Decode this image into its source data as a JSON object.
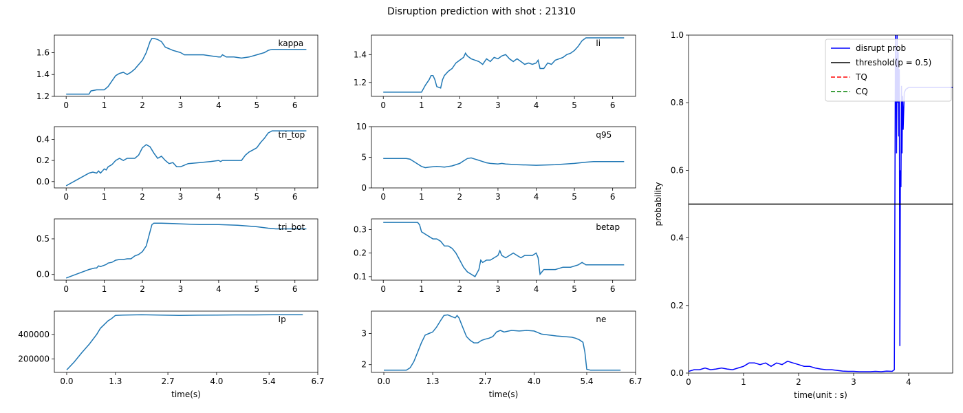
{
  "figure": {
    "title": "Disruption prediction with shot : 21310"
  },
  "chart_data": [
    {
      "type": "line",
      "panel": "kappa",
      "label": "kappa",
      "color": "#1f77b4",
      "xlim": [
        -0.31,
        6.6
      ],
      "ylim": [
        1.2,
        1.76
      ],
      "xticks": [
        0,
        1,
        2,
        3,
        4,
        5,
        6
      ],
      "xtick_labels": [
        "0",
        "1",
        "2",
        "3",
        "4",
        "5",
        "6"
      ],
      "yticks": [
        1.2,
        1.4,
        1.6
      ],
      "ytick_labels": [
        "1.2",
        "1.4",
        "1.6"
      ],
      "xlabel": "",
      "x": [
        0,
        0.6,
        0.65,
        0.8,
        1.0,
        1.1,
        1.2,
        1.3,
        1.4,
        1.5,
        1.6,
        1.7,
        1.8,
        1.9,
        2.0,
        2.1,
        2.2,
        2.25,
        2.3,
        2.4,
        2.5,
        2.6,
        2.8,
        3.0,
        3.1,
        3.3,
        3.6,
        3.8,
        4.0,
        4.05,
        4.1,
        4.2,
        4.4,
        4.6,
        4.8,
        5.0,
        5.1,
        5.2,
        5.3,
        5.4,
        5.5,
        6.0,
        6.3
      ],
      "y": [
        1.22,
        1.22,
        1.25,
        1.26,
        1.26,
        1.29,
        1.34,
        1.39,
        1.41,
        1.42,
        1.4,
        1.42,
        1.45,
        1.49,
        1.53,
        1.6,
        1.7,
        1.73,
        1.73,
        1.72,
        1.7,
        1.65,
        1.62,
        1.6,
        1.58,
        1.58,
        1.58,
        1.57,
        1.56,
        1.56,
        1.58,
        1.56,
        1.56,
        1.55,
        1.56,
        1.58,
        1.59,
        1.6,
        1.62,
        1.63,
        1.63,
        1.63,
        1.63
      ]
    },
    {
      "type": "line",
      "panel": "tri_top",
      "label": "tri_top",
      "color": "#1f77b4",
      "xlim": [
        -0.31,
        6.6
      ],
      "ylim": [
        -0.06,
        0.52
      ],
      "xticks": [
        0,
        1,
        2,
        3,
        4,
        5,
        6
      ],
      "xtick_labels": [
        "0",
        "1",
        "2",
        "3",
        "4",
        "5",
        "6"
      ],
      "yticks": [
        0.0,
        0.2,
        0.4
      ],
      "ytick_labels": [
        "0.0",
        "0.2",
        "0.4"
      ],
      "xlabel": "",
      "x": [
        0,
        0.3,
        0.6,
        0.7,
        0.8,
        0.85,
        0.9,
        1.0,
        1.05,
        1.1,
        1.2,
        1.3,
        1.4,
        1.5,
        1.6,
        1.8,
        1.9,
        2.0,
        2.1,
        2.2,
        2.3,
        2.4,
        2.5,
        2.6,
        2.7,
        2.8,
        2.9,
        3.0,
        3.2,
        3.5,
        3.8,
        4.0,
        4.05,
        4.1,
        4.3,
        4.5,
        4.6,
        4.7,
        4.8,
        4.9,
        5.0,
        5.1,
        5.2,
        5.3,
        5.4,
        6.0,
        6.3
      ],
      "y": [
        -0.04,
        0.02,
        0.08,
        0.09,
        0.08,
        0.1,
        0.08,
        0.12,
        0.11,
        0.14,
        0.16,
        0.2,
        0.22,
        0.2,
        0.22,
        0.22,
        0.25,
        0.32,
        0.35,
        0.33,
        0.27,
        0.22,
        0.24,
        0.2,
        0.17,
        0.18,
        0.14,
        0.14,
        0.17,
        0.18,
        0.19,
        0.2,
        0.19,
        0.2,
        0.2,
        0.2,
        0.2,
        0.25,
        0.28,
        0.3,
        0.32,
        0.37,
        0.41,
        0.46,
        0.48,
        0.48,
        0.48
      ]
    },
    {
      "type": "line",
      "panel": "tri_bot",
      "label": "tri_bot",
      "color": "#1f77b4",
      "xlim": [
        -0.31,
        6.6
      ],
      "ylim": [
        -0.08,
        0.78
      ],
      "xticks": [
        0,
        1,
        2,
        3,
        4,
        5,
        6
      ],
      "xtick_labels": [
        "0",
        "1",
        "2",
        "3",
        "4",
        "5",
        "6"
      ],
      "yticks": [
        0.0,
        0.5
      ],
      "ytick_labels": [
        "0.0",
        "0.5"
      ],
      "xlabel": "",
      "x": [
        0,
        0.3,
        0.6,
        0.75,
        0.8,
        0.85,
        0.9,
        1.0,
        1.05,
        1.1,
        1.2,
        1.3,
        1.4,
        1.5,
        1.6,
        1.7,
        1.8,
        1.9,
        2.0,
        2.1,
        2.2,
        2.25,
        2.3,
        2.5,
        3.0,
        3.5,
        4.0,
        4.5,
        5.0,
        5.3,
        5.5,
        6.0,
        6.3
      ],
      "y": [
        -0.05,
        0.01,
        0.07,
        0.09,
        0.09,
        0.12,
        0.11,
        0.13,
        0.14,
        0.16,
        0.17,
        0.2,
        0.21,
        0.21,
        0.22,
        0.22,
        0.26,
        0.28,
        0.32,
        0.4,
        0.6,
        0.7,
        0.72,
        0.72,
        0.71,
        0.7,
        0.7,
        0.69,
        0.67,
        0.65,
        0.64,
        0.64,
        0.64
      ]
    },
    {
      "type": "line",
      "panel": "Ip",
      "label": "Ip",
      "color": "#1f77b4",
      "xlim": [
        -0.33,
        6.7
      ],
      "ylim": [
        90000,
        590000
      ],
      "xticks": [
        0.0,
        1.3,
        2.7,
        4.0,
        5.4,
        6.7
      ],
      "xtick_labels": [
        "0.0",
        "1.3",
        "2.7",
        "4.0",
        "5.4",
        "6.7"
      ],
      "yticks": [
        200000,
        400000
      ],
      "ytick_labels": [
        "200000",
        "400000"
      ],
      "xlabel": "time(s)",
      "x": [
        0,
        0.2,
        0.4,
        0.6,
        0.8,
        0.9,
        1.0,
        1.1,
        1.2,
        1.3,
        1.5,
        2.0,
        2.5,
        3.0,
        3.5,
        4.0,
        4.5,
        5.0,
        5.5,
        6.0,
        6.3
      ],
      "y": [
        110000,
        175000,
        250000,
        320000,
        400000,
        450000,
        480000,
        510000,
        530000,
        555000,
        558000,
        560000,
        558000,
        555000,
        557000,
        558000,
        559000,
        559000,
        560000,
        560000,
        560000
      ]
    },
    {
      "type": "line",
      "panel": "li",
      "label": "li",
      "color": "#1f77b4",
      "xlim": [
        -0.31,
        6.6
      ],
      "ylim": [
        1.1,
        1.54
      ],
      "xticks": [
        0,
        1,
        2,
        3,
        4,
        5,
        6
      ],
      "xtick_labels": [
        "0",
        "1",
        "2",
        "3",
        "4",
        "5",
        "6"
      ],
      "yticks": [
        1.2,
        1.4
      ],
      "ytick_labels": [
        "1.2",
        "1.4"
      ],
      "xlabel": "",
      "x": [
        0,
        1.0,
        1.1,
        1.2,
        1.25,
        1.3,
        1.35,
        1.4,
        1.5,
        1.55,
        1.6,
        1.7,
        1.8,
        1.9,
        2.0,
        2.1,
        2.15,
        2.2,
        2.3,
        2.4,
        2.5,
        2.6,
        2.7,
        2.8,
        2.9,
        3.0,
        3.1,
        3.2,
        3.3,
        3.4,
        3.5,
        3.6,
        3.7,
        3.8,
        3.9,
        4.0,
        4.05,
        4.1,
        4.2,
        4.3,
        4.4,
        4.5,
        4.6,
        4.7,
        4.8,
        4.9,
        5.0,
        5.1,
        5.2,
        5.3,
        6.3
      ],
      "y": [
        1.13,
        1.13,
        1.18,
        1.22,
        1.25,
        1.25,
        1.22,
        1.17,
        1.16,
        1.22,
        1.25,
        1.28,
        1.3,
        1.34,
        1.36,
        1.38,
        1.41,
        1.39,
        1.37,
        1.36,
        1.35,
        1.33,
        1.37,
        1.35,
        1.38,
        1.37,
        1.39,
        1.4,
        1.37,
        1.35,
        1.37,
        1.35,
        1.33,
        1.34,
        1.33,
        1.34,
        1.36,
        1.3,
        1.3,
        1.34,
        1.33,
        1.36,
        1.37,
        1.38,
        1.4,
        1.41,
        1.43,
        1.46,
        1.5,
        1.52,
        1.52
      ]
    },
    {
      "type": "line",
      "panel": "q95",
      "label": "q95",
      "color": "#1f77b4",
      "xlim": [
        -0.31,
        6.6
      ],
      "ylim": [
        0,
        10
      ],
      "xticks": [
        0,
        1,
        2,
        3,
        4,
        5,
        6
      ],
      "xtick_labels": [
        "0",
        "1",
        "2",
        "3",
        "4",
        "5",
        "6"
      ],
      "yticks": [
        0,
        5,
        10
      ],
      "ytick_labels": [
        "0",
        "5",
        "10"
      ],
      "xlabel": "",
      "x": [
        0,
        0.6,
        0.7,
        0.8,
        0.9,
        1.0,
        1.1,
        1.2,
        1.4,
        1.6,
        1.8,
        2.0,
        2.1,
        2.2,
        2.3,
        2.4,
        2.5,
        2.6,
        2.7,
        2.8,
        3.0,
        3.1,
        3.2,
        3.5,
        4.0,
        4.5,
        5.0,
        5.3,
        5.5,
        6.0,
        6.3
      ],
      "y": [
        4.8,
        4.8,
        4.7,
        4.3,
        3.9,
        3.5,
        3.3,
        3.4,
        3.5,
        3.4,
        3.6,
        4.0,
        4.4,
        4.8,
        4.9,
        4.7,
        4.5,
        4.3,
        4.1,
        4.0,
        3.9,
        4.0,
        3.9,
        3.8,
        3.7,
        3.8,
        4.0,
        4.2,
        4.3,
        4.3,
        4.3
      ]
    },
    {
      "type": "line",
      "panel": "betap",
      "label": "betap",
      "color": "#1f77b4",
      "xlim": [
        -0.31,
        6.6
      ],
      "ylim": [
        0.085,
        0.345
      ],
      "xticks": [
        0,
        1,
        2,
        3,
        4,
        5,
        6
      ],
      "xtick_labels": [
        "0",
        "1",
        "2",
        "3",
        "4",
        "5",
        "6"
      ],
      "yticks": [
        0.1,
        0.2,
        0.3
      ],
      "ytick_labels": [
        "0.1",
        "0.2",
        "0.3"
      ],
      "xlabel": "",
      "x": [
        0,
        0.9,
        0.95,
        1.0,
        1.1,
        1.2,
        1.3,
        1.4,
        1.5,
        1.6,
        1.7,
        1.8,
        1.9,
        2.0,
        2.1,
        2.2,
        2.3,
        2.4,
        2.5,
        2.55,
        2.6,
        2.7,
        2.8,
        2.9,
        3.0,
        3.05,
        3.1,
        3.2,
        3.3,
        3.4,
        3.5,
        3.6,
        3.7,
        3.8,
        3.9,
        4.0,
        4.05,
        4.1,
        4.2,
        4.3,
        4.5,
        4.7,
        4.9,
        5.1,
        5.2,
        5.3,
        6.3
      ],
      "y": [
        0.33,
        0.33,
        0.32,
        0.29,
        0.28,
        0.27,
        0.26,
        0.26,
        0.25,
        0.23,
        0.23,
        0.22,
        0.2,
        0.17,
        0.14,
        0.12,
        0.11,
        0.1,
        0.13,
        0.17,
        0.16,
        0.17,
        0.17,
        0.18,
        0.19,
        0.21,
        0.19,
        0.18,
        0.19,
        0.2,
        0.19,
        0.18,
        0.19,
        0.19,
        0.19,
        0.2,
        0.18,
        0.11,
        0.13,
        0.13,
        0.13,
        0.14,
        0.14,
        0.15,
        0.16,
        0.15,
        0.15
      ]
    },
    {
      "type": "line",
      "panel": "ne",
      "label": "ne",
      "color": "#1f77b4",
      "xlim": [
        -0.33,
        6.7
      ],
      "ylim": [
        1.75,
        3.72
      ],
      "xticks": [
        0.0,
        1.3,
        2.7,
        4.0,
        5.4,
        6.7
      ],
      "xtick_labels": [
        "0.0",
        "1.3",
        "2.7",
        "4.0",
        "5.4",
        "6.7"
      ],
      "yticks": [
        2,
        3
      ],
      "ytick_labels": [
        "2",
        "3"
      ],
      "xlabel": "time(s)",
      "x": [
        0,
        0.6,
        0.7,
        0.8,
        0.9,
        1.0,
        1.1,
        1.2,
        1.3,
        1.4,
        1.5,
        1.6,
        1.7,
        1.8,
        1.9,
        1.95,
        2.0,
        2.1,
        2.2,
        2.3,
        2.4,
        2.5,
        2.6,
        2.7,
        2.8,
        2.9,
        3.0,
        3.1,
        3.2,
        3.4,
        3.6,
        3.8,
        4.0,
        4.2,
        4.4,
        4.6,
        4.8,
        5.0,
        5.1,
        5.2,
        5.3,
        5.35,
        5.4,
        5.5,
        6.3
      ],
      "y": [
        1.82,
        1.82,
        1.9,
        2.1,
        2.4,
        2.7,
        2.95,
        3.0,
        3.05,
        3.2,
        3.4,
        3.58,
        3.6,
        3.55,
        3.5,
        3.58,
        3.5,
        3.2,
        2.9,
        2.78,
        2.7,
        2.7,
        2.78,
        2.82,
        2.85,
        2.9,
        3.05,
        3.1,
        3.05,
        3.1,
        3.08,
        3.1,
        3.08,
        2.98,
        2.95,
        2.92,
        2.9,
        2.88,
        2.85,
        2.8,
        2.72,
        2.4,
        1.85,
        1.82,
        1.82
      ]
    },
    {
      "type": "line",
      "panel": "prob",
      "color": "#0000ff",
      "xlim": [
        0,
        4.8
      ],
      "ylim": [
        0,
        1.0
      ],
      "xticks": [
        0,
        1,
        2,
        3,
        4
      ],
      "xtick_labels": [
        "0",
        "1",
        "2",
        "3",
        "4"
      ],
      "yticks": [
        0.0,
        0.2,
        0.4,
        0.6,
        0.8,
        1.0
      ],
      "ytick_labels": [
        "0.0",
        "0.2",
        "0.4",
        "0.6",
        "0.8",
        "1.0"
      ],
      "xlabel": "time(unit : s)",
      "ylabel": "probability",
      "threshold": 0.5,
      "series": [
        {
          "name": "disrupt prob",
          "color": "#0000ff",
          "style": "solid",
          "x": [
            0,
            0.1,
            0.2,
            0.3,
            0.4,
            0.5,
            0.6,
            0.7,
            0.8,
            0.9,
            1.0,
            1.1,
            1.2,
            1.3,
            1.4,
            1.5,
            1.6,
            1.7,
            1.8,
            1.9,
            2.0,
            2.1,
            2.2,
            2.3,
            2.4,
            2.5,
            2.6,
            2.7,
            2.8,
            2.9,
            3.0,
            3.1,
            3.2,
            3.3,
            3.4,
            3.5,
            3.6,
            3.7,
            3.74,
            3.75,
            3.76,
            3.77,
            3.78,
            3.79,
            3.8,
            3.81,
            3.82,
            3.83,
            3.84,
            3.85,
            3.86,
            3.87,
            3.88,
            3.89,
            3.9,
            3.92,
            3.95,
            4.0,
            4.2,
            4.5,
            4.8
          ],
          "y": [
            0.005,
            0.01,
            0.01,
            0.015,
            0.01,
            0.012,
            0.015,
            0.012,
            0.01,
            0.015,
            0.02,
            0.03,
            0.03,
            0.025,
            0.03,
            0.02,
            0.03,
            0.025,
            0.035,
            0.03,
            0.025,
            0.02,
            0.02,
            0.015,
            0.012,
            0.01,
            0.01,
            0.008,
            0.006,
            0.005,
            0.005,
            0.004,
            0.004,
            0.004,
            0.005,
            0.004,
            0.006,
            0.005,
            0.01,
            0.5,
            1.0,
            0.9,
            0.65,
            1.0,
            0.8,
            0.95,
            0.7,
            0.9,
            0.08,
            0.6,
            0.55,
            0.85,
            0.65,
            0.82,
            0.72,
            0.83,
            0.84,
            0.845,
            0.845,
            0.845,
            0.845
          ]
        },
        {
          "name": "threshold(p = 0.5)",
          "color": "#000000",
          "style": "solid",
          "x": [
            0,
            4.8
          ],
          "y": [
            0.5,
            0.5
          ]
        },
        {
          "name": "TQ",
          "color": "#ff0000",
          "style": "dashed",
          "x": [],
          "y": []
        },
        {
          "name": "CQ",
          "color": "#008000",
          "style": "dashed",
          "x": [],
          "y": []
        }
      ],
      "legend": "top-right"
    }
  ]
}
